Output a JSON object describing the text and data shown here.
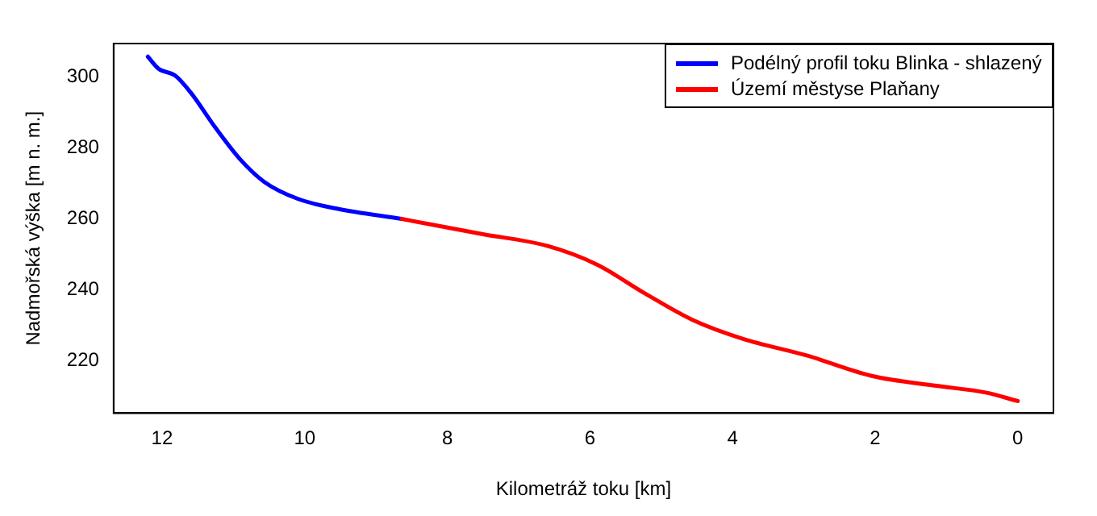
{
  "chart_data": {
    "type": "line",
    "xlabel": "Kilometráž toku [km]",
    "ylabel": "Nadmořská výška [m n. m.]",
    "xlim": [
      12.68,
      -0.5
    ],
    "xticks": [
      0,
      2,
      4,
      6,
      8,
      10,
      12
    ],
    "ylim": [
      205.2,
      309.5
    ],
    "yticks": [
      220,
      240,
      260,
      280,
      300
    ],
    "grid": false,
    "legend": "top right",
    "marker": "none",
    "line_style": "solid",
    "series": [
      {
        "name": "Podélný profil toku Blinka - shlazený",
        "color": "#0000ff",
        "x": [
          12.2,
          12.05,
          11.82,
          11.6,
          11.25,
          10.9,
          10.57,
          10.1,
          9.55,
          8.64
        ],
        "values": [
          305.8,
          302.4,
          300.5,
          295.7,
          285.7,
          276.7,
          270.5,
          265.7,
          262.9,
          260
        ]
      },
      {
        "name": "Území městyse Plaňany",
        "color": "#ff0000",
        "x": [
          8.64,
          7.5,
          6.6,
          5.9,
          5.23,
          4.55,
          3.86,
          2.95,
          2.05,
          1.14,
          0.45,
          0
        ],
        "values": [
          260,
          255.7,
          252.4,
          247.1,
          239,
          231.4,
          226.2,
          221.4,
          215.7,
          212.9,
          211,
          208.6
        ]
      }
    ]
  }
}
